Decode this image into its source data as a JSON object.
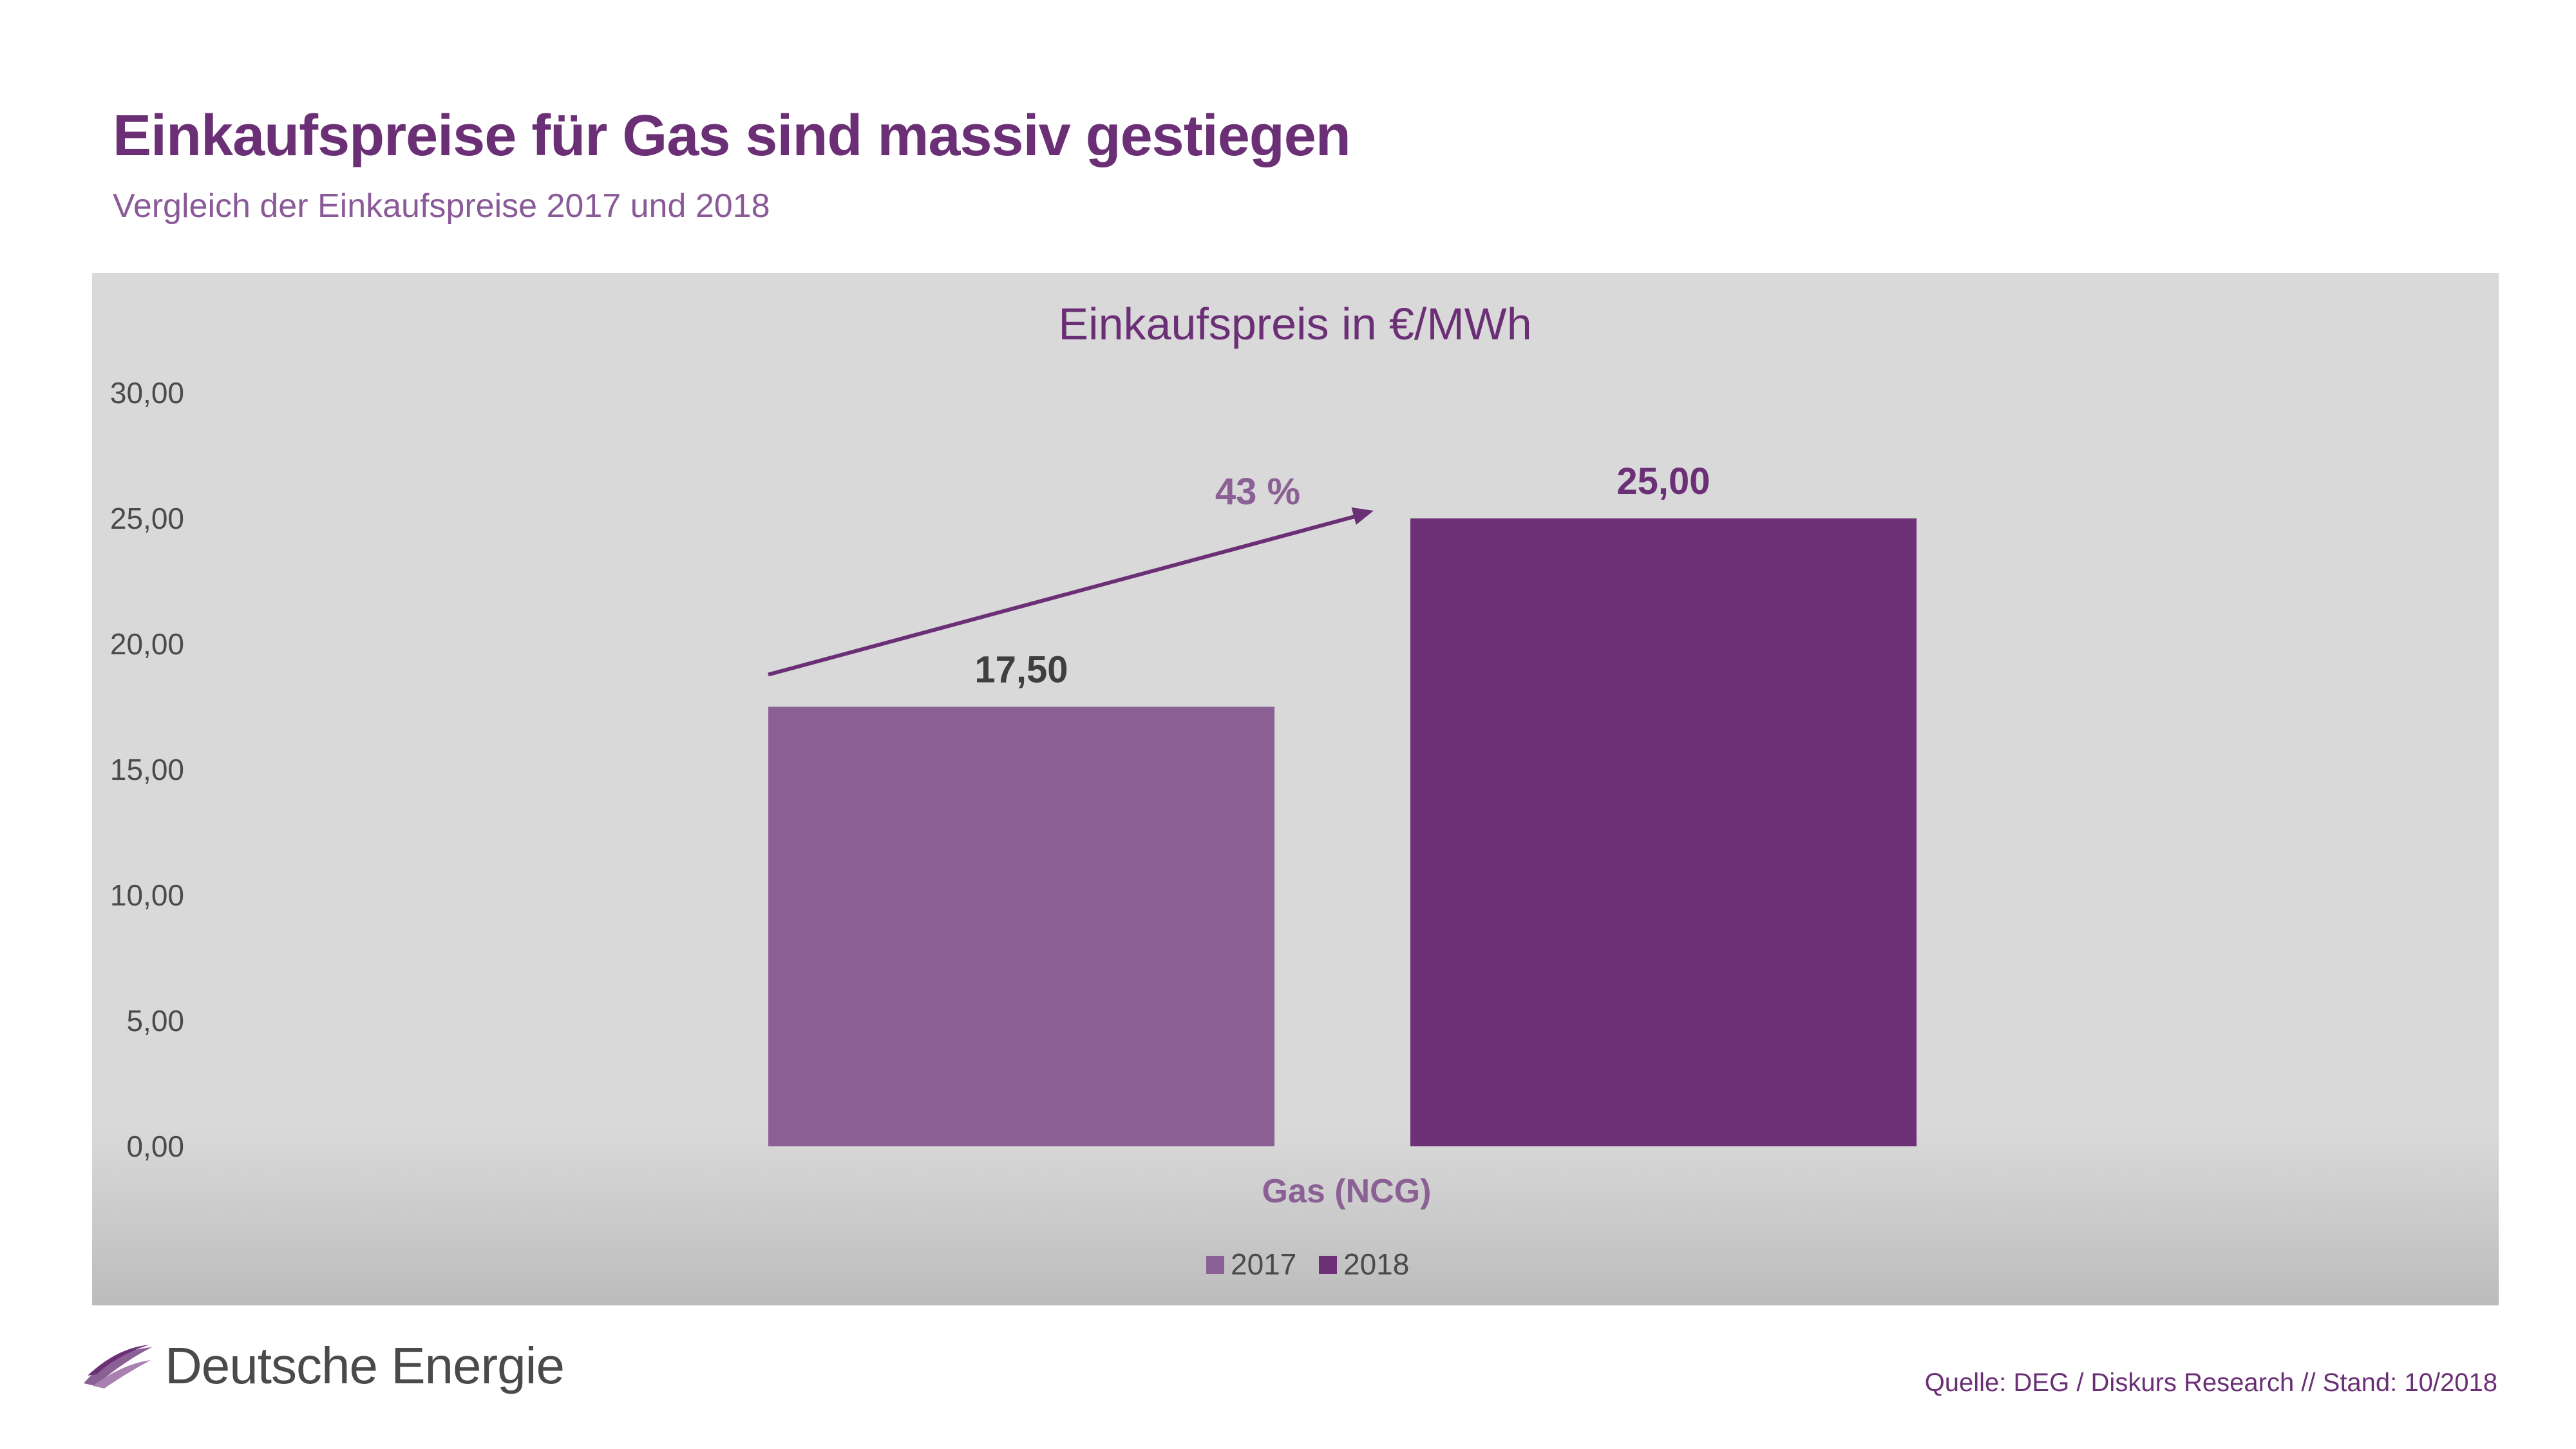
{
  "header": {
    "title": "Einkaufspreise für Gas sind massiv gestiegen",
    "subtitle": "Vergleich der Einkaufspreise 2017 und 2018"
  },
  "footer": {
    "brand": "Deutsche Energie",
    "source": "Quelle: DEG / Diskurs Research // Stand: 10/2018"
  },
  "colors": {
    "brand": "#6b2f76",
    "series_2017": "#8b6095",
    "series_2018": "#6e3076",
    "axis_text": "#4a4a4a"
  },
  "chart_data": {
    "type": "bar",
    "title": "Einkaufspreis in €/MWh",
    "categories": [
      "Gas (NCG)"
    ],
    "xlabel": "Gas (NCG)",
    "ylabel": "",
    "ylim": [
      0,
      30
    ],
    "yticks": [
      0,
      5,
      10,
      15,
      20,
      25,
      30
    ],
    "ytick_labels": [
      "0,00",
      "5,00",
      "10,00",
      "15,00",
      "20,00",
      "25,00",
      "30,00"
    ],
    "grid": false,
    "legend": "bottom",
    "series": [
      {
        "name": "2017",
        "values": [
          17.5
        ],
        "label": "17,50"
      },
      {
        "name": "2018",
        "values": [
          25.0
        ],
        "label": "25,00"
      }
    ],
    "annotations": [
      {
        "text": "43 %",
        "type": "growth-arrow",
        "from_series": "2017",
        "to_series": "2018"
      }
    ]
  }
}
